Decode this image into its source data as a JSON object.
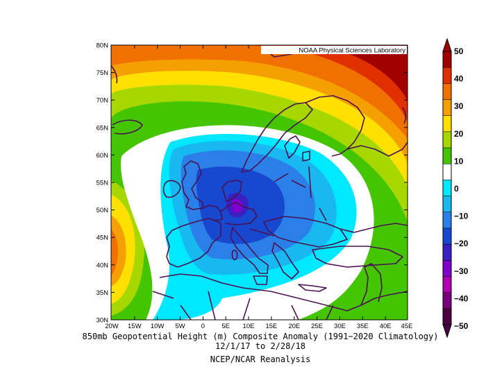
{
  "map": {
    "credit": "NOAA Physical Sciences Laboratory",
    "lat_labels": [
      "80N",
      "75N",
      "70N",
      "65N",
      "60N",
      "55N",
      "50N",
      "45N",
      "40N",
      "35N",
      "30N"
    ],
    "lon_labels": [
      "20W",
      "15W",
      "10W",
      "5W",
      "0",
      "5E",
      "10E",
      "15E",
      "20E",
      "25E",
      "30E",
      "35E",
      "40E",
      "45E"
    ],
    "extent": {
      "lon": [
        -20,
        45
      ],
      "lat": [
        30,
        80
      ]
    },
    "colorbar": {
      "labels": [
        "50",
        "40",
        "30",
        "20",
        "10",
        "0",
        "−10",
        "−20",
        "−30",
        "−40",
        "−50"
      ],
      "colors": [
        "#a00000",
        "#e03000",
        "#f07000",
        "#f5a000",
        "#ffe000",
        "#a6d800",
        "#44c500",
        "#ffffff",
        "#00e8ff",
        "#18b8f0",
        "#2a80e8",
        "#1848d0",
        "#3a20c0",
        "#8000d0",
        "#b000b0",
        "#7a007a",
        "#4a0040"
      ]
    }
  },
  "caption": {
    "line1": "850mb Geopotential Height (m) Composite Anomaly (1991−2020 Climatology)",
    "line2": "12/1/17   to 2/28/18",
    "line3": "NCEP/NCAR Reanalysis"
  }
}
